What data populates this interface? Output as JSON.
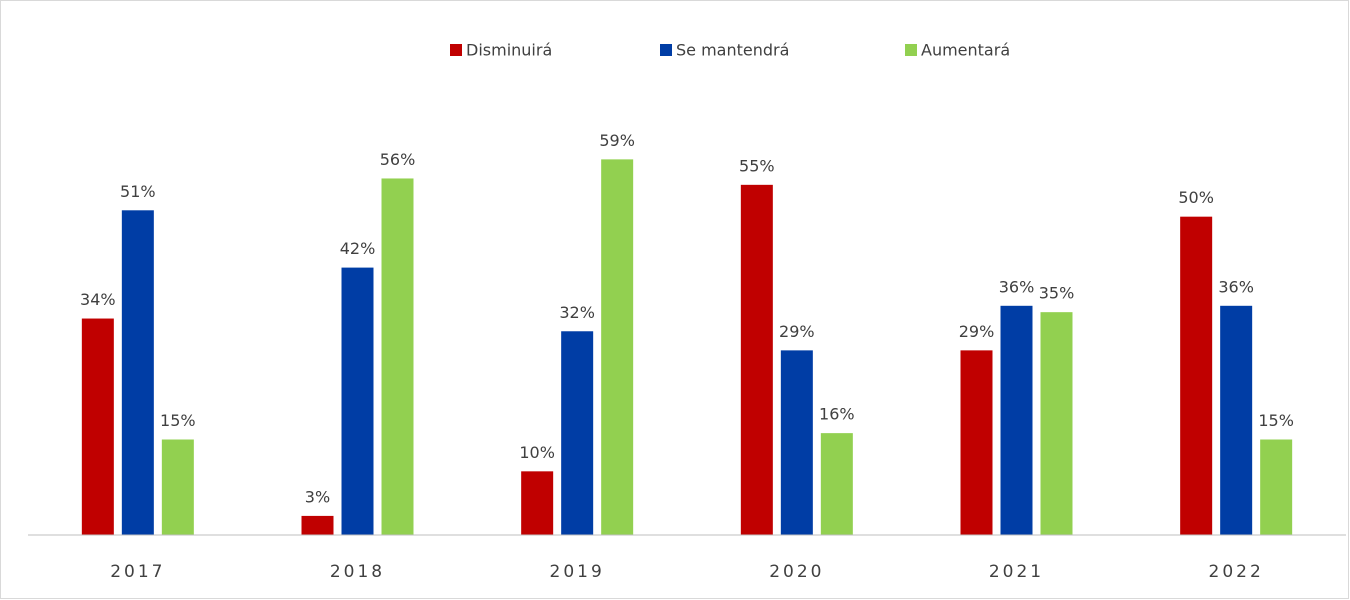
{
  "chart_data": {
    "type": "bar",
    "categories": [
      "2017",
      "2018",
      "2019",
      "2020",
      "2021",
      "2022"
    ],
    "series": [
      {
        "name": "Disminuirá",
        "color": "#c00000",
        "values": [
          34,
          3,
          10,
          55,
          29,
          50
        ],
        "value_labels": [
          "34%",
          "3%",
          "10%",
          "55%",
          "29%",
          "50%"
        ]
      },
      {
        "name": "Se mantendrá",
        "color": "#003da5",
        "values": [
          51,
          42,
          32,
          29,
          36,
          36
        ],
        "value_labels": [
          "51%",
          "42%",
          "32%",
          "29%",
          "36%",
          "36%"
        ]
      },
      {
        "name": "Aumentará",
        "color": "#92d050",
        "values": [
          15,
          56,
          59,
          16,
          35,
          15
        ],
        "value_labels": [
          "15%",
          "56%",
          "59%",
          "16%",
          "35%",
          "15%"
        ]
      }
    ],
    "ylim": [
      0,
      60
    ],
    "legend": "top"
  }
}
